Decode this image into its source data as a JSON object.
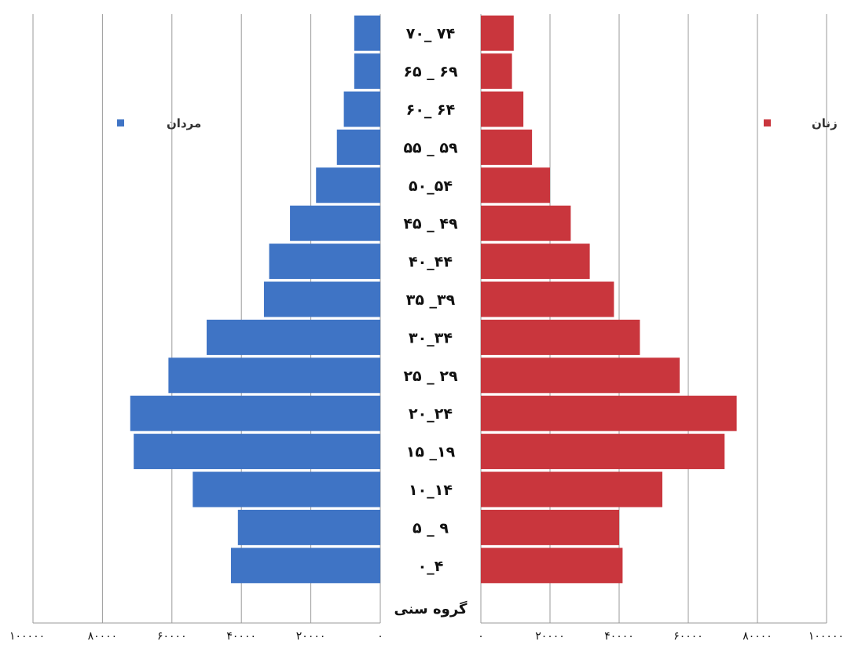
{
  "chart_data": {
    "type": "bar",
    "orientation": "horizontal",
    "layout": "population-pyramid",
    "categories": [
      "۰_۴",
      "۵ _ ۹",
      "۱۰_۱۴",
      "۱۵ _۱۹",
      "۲۰_۲۴",
      "۲۵ _ ۲۹",
      "۳۰_۳۴",
      "۳۵ _۳۹",
      "۴۰_۴۴",
      "۴۵ _ ۴۹",
      "۵۰_۵۴",
      "۵۵ _ ۵۹",
      "۶۰_ ۶۴",
      "۶۵ _ ۶۹",
      "۷۰_ ۷۴"
    ],
    "category_axis_label": "گروه سنی",
    "series": [
      {
        "name": "مردان",
        "side": "left",
        "color": "#3f74c5",
        "values": [
          43000,
          41000,
          54000,
          71000,
          72000,
          61000,
          50000,
          33500,
          32000,
          26000,
          18500,
          12500,
          10500,
          7500,
          7500
        ]
      },
      {
        "name": "زنان",
        "side": "right",
        "color": "#c9363d",
        "values": [
          41000,
          40000,
          52500,
          70500,
          74000,
          57500,
          46000,
          38500,
          31500,
          26000,
          20000,
          14800,
          12300,
          9000,
          9500
        ]
      }
    ],
    "legend": [
      {
        "label": "مردان",
        "color": "#3f74c5",
        "position": "top-left"
      },
      {
        "label": "زنان",
        "color": "#c9363d",
        "position": "top-right"
      }
    ],
    "xlim": [
      0,
      100000
    ],
    "xticks": [
      0,
      20000,
      40000,
      60000,
      80000,
      100000
    ],
    "xtick_labels_left": [
      "۰",
      "۲۰۰۰۰",
      "۴۰۰۰۰",
      "۶۰۰۰۰",
      "۸۰۰۰۰",
      "۱۰۰۰۰۰"
    ],
    "xtick_labels_right": [
      "۰",
      "۲۰۰۰۰",
      "۴۰۰۰۰",
      "۶۰۰۰۰",
      "۸۰۰۰۰",
      "۱۰۰۰۰۰"
    ],
    "grid": true
  }
}
